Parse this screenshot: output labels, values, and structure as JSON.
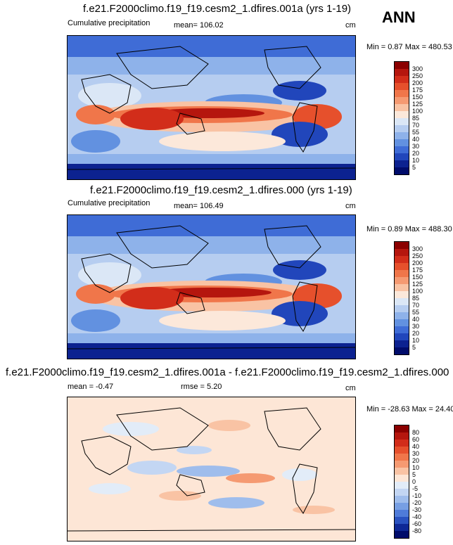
{
  "season": "ANN",
  "panels": [
    {
      "title": "f.e21.F2000climo.f19_f19.cesm2_1.dfires.001a (yrs 1-19)",
      "left_label": "Cumulative precipitation",
      "mid_label": "mean= 106.02",
      "units": "cm",
      "range_text": "Min =  0.87 Max = 480.53",
      "levels": [
        "300",
        "250",
        "200",
        "175",
        "150",
        "125",
        "100",
        "85",
        "70",
        "55",
        "40",
        "30",
        "20",
        "10",
        "5"
      ],
      "colors": [
        "#8b0000",
        "#b5160e",
        "#d22d1a",
        "#e6502c",
        "#f0764a",
        "#f59a72",
        "#f9c3a4",
        "#fce8da",
        "#dbe7f6",
        "#b6cdf0",
        "#8eb2ea",
        "#6291e0",
        "#3f6cd6",
        "#2146bb",
        "#0c2290",
        "#000c6b"
      ]
    },
    {
      "title": "f.e21.F2000climo.f19_f19.cesm2_1.dfires.000 (yrs 1-19)",
      "left_label": "Cumulative precipitation",
      "mid_label": "mean= 106.49",
      "units": "cm",
      "range_text": "Min =  0.89 Max = 488.30",
      "levels": [
        "300",
        "250",
        "200",
        "175",
        "150",
        "125",
        "100",
        "85",
        "70",
        "55",
        "40",
        "30",
        "20",
        "10",
        "5"
      ],
      "colors": [
        "#8b0000",
        "#b5160e",
        "#d22d1a",
        "#e6502c",
        "#f0764a",
        "#f59a72",
        "#f9c3a4",
        "#fce8da",
        "#dbe7f6",
        "#b6cdf0",
        "#8eb2ea",
        "#6291e0",
        "#3f6cd6",
        "#2146bb",
        "#0c2290",
        "#000c6b"
      ]
    },
    {
      "title": "f.e21.F2000climo.f19_f19.cesm2_1.dfires.001a - f.e21.F2000climo.f19_f19.cesm2_1.dfires.000",
      "left_label": "mean = -0.47",
      "mid_label": "rmse =  5.20",
      "units": "cm",
      "range_text": "Min = -28.63 Max = 24.40",
      "levels": [
        "80",
        "60",
        "40",
        "30",
        "20",
        "10",
        "5",
        "0",
        "-5",
        "-10",
        "-20",
        "-30",
        "-40",
        "-60",
        "-80"
      ],
      "colors": [
        "#8b0000",
        "#b5160e",
        "#d22d1a",
        "#e6502c",
        "#f0764a",
        "#f59a72",
        "#f9c3a4",
        "#fde6d6",
        "#e2ecf8",
        "#c3d6f3",
        "#9fbdec",
        "#779fe3",
        "#4f7bd9",
        "#2a52c0",
        "#0e2896",
        "#000c6b"
      ]
    }
  ],
  "chart_data": [
    {
      "type": "heatmap",
      "title": "f.e21.F2000climo.f19_f19.cesm2_1.dfires.001a (yrs 1-19)",
      "subtitle": "Cumulative precipitation",
      "season": "ANN",
      "units": "cm",
      "mean": 106.02,
      "min": 0.87,
      "max": 480.53,
      "colorbar_levels": [
        5,
        10,
        20,
        30,
        40,
        55,
        70,
        85,
        100,
        125,
        150,
        175,
        200,
        250,
        300
      ]
    },
    {
      "type": "heatmap",
      "title": "f.e21.F2000climo.f19_f19.cesm2_1.dfires.000 (yrs 1-19)",
      "subtitle": "Cumulative precipitation",
      "season": "ANN",
      "units": "cm",
      "mean": 106.49,
      "min": 0.89,
      "max": 488.3,
      "colorbar_levels": [
        5,
        10,
        20,
        30,
        40,
        55,
        70,
        85,
        100,
        125,
        150,
        175,
        200,
        250,
        300
      ]
    },
    {
      "type": "heatmap",
      "title": "f.e21.F2000climo.f19_f19.cesm2_1.dfires.001a - f.e21.F2000climo.f19_f19.cesm2_1.dfires.000",
      "units": "cm",
      "mean": -0.47,
      "rmse": 5.2,
      "min": -28.63,
      "max": 24.4,
      "colorbar_levels": [
        -80,
        -60,
        -40,
        -30,
        -20,
        -10,
        -5,
        0,
        5,
        10,
        20,
        30,
        40,
        60,
        80
      ]
    }
  ]
}
